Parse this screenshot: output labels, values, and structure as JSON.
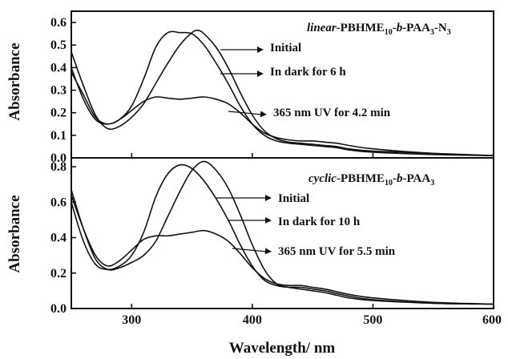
{
  "chart_data": [
    {
      "type": "line",
      "panel": "top",
      "title": "linear-PBHME10-b-PAA3-N3",
      "title_parts": [
        {
          "text": "linear",
          "style": "italic"
        },
        {
          "text": "-PBHME",
          "style": "normal"
        },
        {
          "text": "10",
          "style": "sub"
        },
        {
          "text": "-",
          "style": "normal"
        },
        {
          "text": "b",
          "style": "italic"
        },
        {
          "text": "-PAA",
          "style": "normal"
        },
        {
          "text": "3",
          "style": "sub"
        },
        {
          "text": "-N",
          "style": "normal"
        },
        {
          "text": "3",
          "style": "sub"
        }
      ],
      "ylabel": "Absorbance",
      "xlim": [
        250,
        600
      ],
      "ylim": [
        0,
        0.65
      ],
      "yticks": [
        "0.0",
        "0.1",
        "0.2",
        "0.3",
        "0.4",
        "0.5",
        "0.6"
      ],
      "ytick_values": [
        0,
        0.1,
        0.2,
        0.3,
        0.4,
        0.5,
        0.6
      ],
      "series": [
        {
          "name": "Initial",
          "x": [
            250,
            260,
            270,
            280,
            290,
            300,
            310,
            320,
            330,
            340,
            350,
            355,
            360,
            370,
            380,
            390,
            400,
            410,
            420,
            430,
            440,
            450,
            460,
            470,
            480,
            500,
            550,
            600
          ],
          "y": [
            0.47,
            0.32,
            0.19,
            0.13,
            0.14,
            0.18,
            0.24,
            0.33,
            0.42,
            0.5,
            0.555,
            0.565,
            0.55,
            0.49,
            0.4,
            0.29,
            0.19,
            0.12,
            0.085,
            0.07,
            0.065,
            0.06,
            0.055,
            0.05,
            0.04,
            0.03,
            0.02,
            0.01
          ]
        },
        {
          "name": "In dark for 6 h",
          "x": [
            250,
            260,
            270,
            280,
            290,
            300,
            310,
            320,
            330,
            340,
            350,
            360,
            370,
            380,
            390,
            400,
            410,
            420,
            430,
            440,
            450,
            460,
            470,
            480,
            500,
            550,
            600
          ],
          "y": [
            0.4,
            0.26,
            0.17,
            0.15,
            0.17,
            0.23,
            0.35,
            0.49,
            0.555,
            0.555,
            0.55,
            0.5,
            0.42,
            0.33,
            0.23,
            0.15,
            0.1,
            0.075,
            0.065,
            0.06,
            0.055,
            0.05,
            0.045,
            0.035,
            0.025,
            0.015,
            0.01
          ]
        },
        {
          "name": "365 nm UV for 4.2 min",
          "x": [
            250,
            260,
            270,
            280,
            290,
            300,
            310,
            320,
            330,
            340,
            350,
            360,
            370,
            380,
            390,
            400,
            410,
            420,
            430,
            440,
            450,
            460,
            470,
            480,
            500,
            550,
            600
          ],
          "y": [
            0.38,
            0.28,
            0.18,
            0.15,
            0.17,
            0.21,
            0.25,
            0.27,
            0.265,
            0.26,
            0.265,
            0.27,
            0.26,
            0.24,
            0.2,
            0.15,
            0.11,
            0.09,
            0.08,
            0.075,
            0.075,
            0.07,
            0.065,
            0.055,
            0.04,
            0.02,
            0.01
          ]
        }
      ],
      "annotations": [
        "Initial",
        "In dark for 6 h",
        "365 nm UV for 4.2 min"
      ]
    },
    {
      "type": "line",
      "panel": "bottom",
      "title": "cyclic-PBHME10-b-PAA3",
      "title_parts": [
        {
          "text": "cyclic",
          "style": "italic"
        },
        {
          "text": "-PBHME",
          "style": "normal"
        },
        {
          "text": "10",
          "style": "sub"
        },
        {
          "text": "-",
          "style": "normal"
        },
        {
          "text": "b",
          "style": "italic"
        },
        {
          "text": "-PAA",
          "style": "normal"
        },
        {
          "text": "3",
          "style": "sub"
        }
      ],
      "xlabel": "Wavelength/ nm",
      "ylabel": "Absorbance",
      "xlim": [
        250,
        600
      ],
      "xticks": [
        "300",
        "400",
        "500",
        "600"
      ],
      "xtick_values": [
        300,
        400,
        500,
        600
      ],
      "ylim": [
        0,
        0.85
      ],
      "yticks": [
        "0.0",
        "0.2",
        "0.4",
        "0.6",
        "0.8"
      ],
      "ytick_values": [
        0,
        0.2,
        0.4,
        0.6,
        0.8
      ],
      "series": [
        {
          "name": "Initial",
          "x": [
            250,
            260,
            270,
            280,
            290,
            300,
            310,
            320,
            330,
            340,
            350,
            360,
            370,
            380,
            390,
            400,
            410,
            420,
            430,
            440,
            450,
            460,
            470,
            480,
            500,
            550,
            600
          ],
          "y": [
            0.67,
            0.45,
            0.28,
            0.22,
            0.23,
            0.26,
            0.3,
            0.38,
            0.52,
            0.66,
            0.78,
            0.83,
            0.78,
            0.68,
            0.53,
            0.36,
            0.22,
            0.14,
            0.12,
            0.11,
            0.1,
            0.09,
            0.075,
            0.06,
            0.045,
            0.03,
            0.025
          ]
        },
        {
          "name": "In dark for 10 h",
          "x": [
            250,
            260,
            270,
            280,
            290,
            300,
            310,
            320,
            330,
            340,
            350,
            360,
            370,
            380,
            390,
            400,
            410,
            420,
            430,
            440,
            450,
            460,
            470,
            480,
            500,
            550,
            600
          ],
          "y": [
            0.6,
            0.38,
            0.25,
            0.22,
            0.24,
            0.3,
            0.43,
            0.63,
            0.76,
            0.81,
            0.79,
            0.72,
            0.62,
            0.5,
            0.36,
            0.24,
            0.16,
            0.13,
            0.12,
            0.12,
            0.11,
            0.1,
            0.085,
            0.07,
            0.05,
            0.03,
            0.025
          ]
        },
        {
          "name": "365 nm UV for 5.5 min",
          "x": [
            250,
            260,
            270,
            280,
            290,
            300,
            310,
            320,
            330,
            340,
            350,
            360,
            370,
            380,
            390,
            400,
            410,
            420,
            430,
            440,
            450,
            460,
            470,
            480,
            500,
            550,
            600
          ],
          "y": [
            0.64,
            0.45,
            0.3,
            0.24,
            0.27,
            0.33,
            0.39,
            0.41,
            0.41,
            0.42,
            0.43,
            0.44,
            0.42,
            0.38,
            0.31,
            0.23,
            0.17,
            0.14,
            0.13,
            0.13,
            0.12,
            0.11,
            0.095,
            0.08,
            0.06,
            0.035,
            0.025
          ]
        }
      ],
      "annotations": [
        "Initial",
        "In dark for 10 h",
        "365 nm UV for 5.5 min"
      ]
    }
  ]
}
